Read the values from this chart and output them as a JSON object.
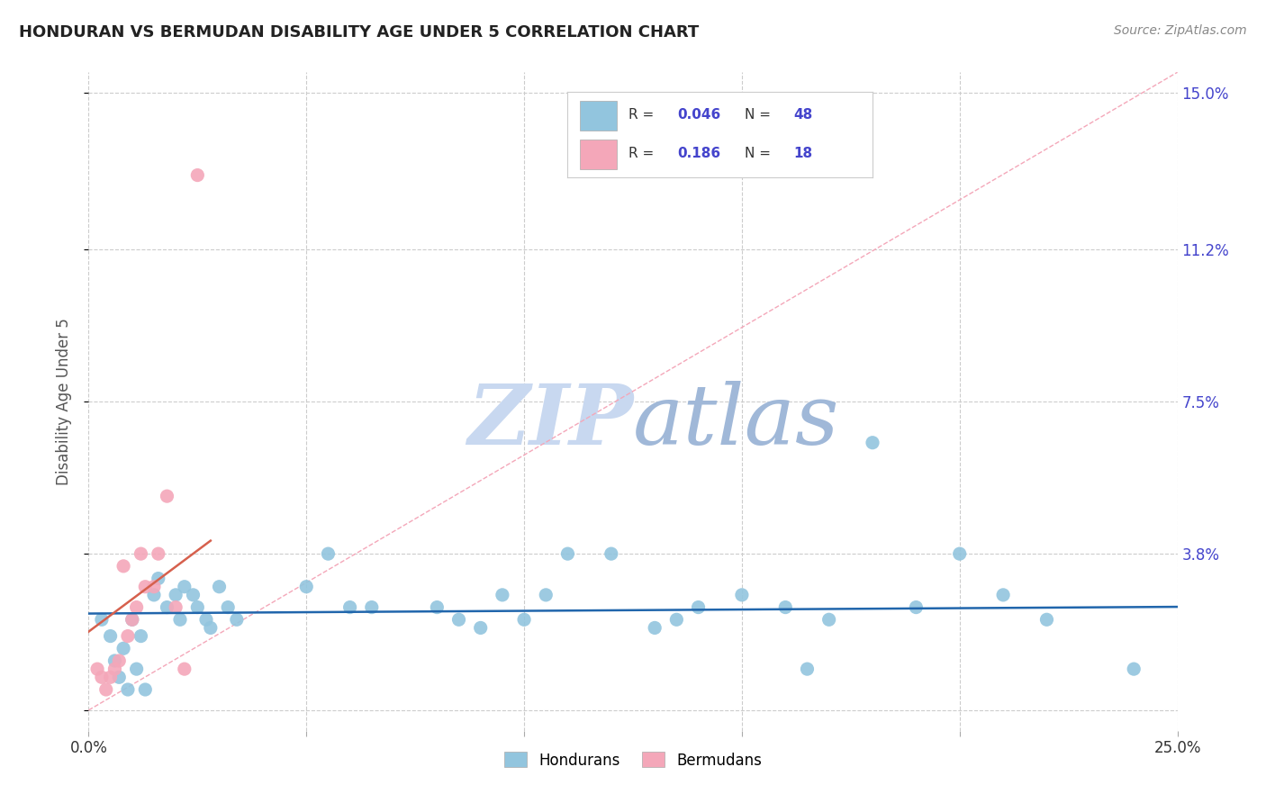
{
  "title": "HONDURAN VS BERMUDAN DISABILITY AGE UNDER 5 CORRELATION CHART",
  "source": "Source: ZipAtlas.com",
  "ylabel": "Disability Age Under 5",
  "xlim": [
    0.0,
    0.25
  ],
  "ylim": [
    -0.005,
    0.155
  ],
  "xticks": [
    0.0,
    0.05,
    0.1,
    0.15,
    0.2,
    0.25
  ],
  "xticklabels": [
    "0.0%",
    "",
    "",
    "",
    "",
    "25.0%"
  ],
  "yticks": [
    0.0,
    0.038,
    0.075,
    0.112,
    0.15
  ],
  "yticklabels": [
    "",
    "3.8%",
    "7.5%",
    "11.2%",
    "15.0%"
  ],
  "R_blue": "0.046",
  "N_blue": "48",
  "R_pink": "0.186",
  "N_pink": "18",
  "blue_color": "#92c5de",
  "pink_color": "#f4a7b9",
  "blue_line_color": "#2166ac",
  "pink_line_color": "#d6604d",
  "diag_color": "#f4a7b9",
  "title_color": "#222222",
  "axis_label_color": "#4444cc",
  "watermark_zip_color": "#c8d8f0",
  "watermark_atlas_color": "#a0b8d8",
  "grid_color": "#cccccc",
  "bg_color": "#ffffff",
  "blue_scatter_x": [
    0.003,
    0.005,
    0.006,
    0.007,
    0.008,
    0.009,
    0.01,
    0.011,
    0.012,
    0.013,
    0.015,
    0.016,
    0.018,
    0.02,
    0.021,
    0.022,
    0.024,
    0.025,
    0.027,
    0.028,
    0.03,
    0.032,
    0.034,
    0.05,
    0.055,
    0.06,
    0.065,
    0.08,
    0.085,
    0.09,
    0.095,
    0.1,
    0.105,
    0.11,
    0.12,
    0.13,
    0.135,
    0.14,
    0.15,
    0.16,
    0.165,
    0.17,
    0.18,
    0.19,
    0.2,
    0.21,
    0.22,
    0.24
  ],
  "blue_scatter_y": [
    0.022,
    0.018,
    0.012,
    0.008,
    0.015,
    0.005,
    0.022,
    0.01,
    0.018,
    0.005,
    0.028,
    0.032,
    0.025,
    0.028,
    0.022,
    0.03,
    0.028,
    0.025,
    0.022,
    0.02,
    0.03,
    0.025,
    0.022,
    0.03,
    0.038,
    0.025,
    0.025,
    0.025,
    0.022,
    0.02,
    0.028,
    0.022,
    0.028,
    0.038,
    0.038,
    0.02,
    0.022,
    0.025,
    0.028,
    0.025,
    0.01,
    0.022,
    0.065,
    0.025,
    0.038,
    0.028,
    0.022,
    0.01
  ],
  "pink_scatter_x": [
    0.002,
    0.003,
    0.004,
    0.005,
    0.006,
    0.007,
    0.008,
    0.009,
    0.01,
    0.011,
    0.012,
    0.013,
    0.015,
    0.016,
    0.018,
    0.02,
    0.022,
    0.025
  ],
  "pink_scatter_y": [
    0.01,
    0.008,
    0.005,
    0.008,
    0.01,
    0.012,
    0.035,
    0.018,
    0.022,
    0.025,
    0.038,
    0.03,
    0.03,
    0.038,
    0.052,
    0.025,
    0.01,
    0.13
  ]
}
